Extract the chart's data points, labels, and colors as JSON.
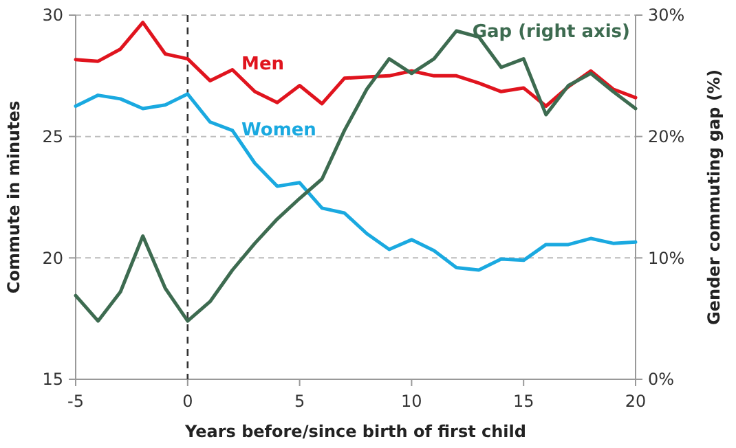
{
  "chart_data": {
    "type": "line",
    "xlabel": "Years before/since birth of first child",
    "ylabel": "Commute in minutes",
    "y2label": "Gender commuting gap (%)",
    "x": [
      -5,
      -4,
      -3,
      -2,
      -1,
      0,
      1,
      2,
      3,
      4,
      5,
      6,
      7,
      8,
      9,
      10,
      11,
      12,
      13,
      14,
      15,
      16,
      17,
      18,
      19,
      20
    ],
    "xlim": [
      -5,
      20
    ],
    "xticks": [
      -5,
      0,
      5,
      10,
      15,
      20
    ],
    "ylim": [
      15,
      30
    ],
    "yticks": [
      15,
      20,
      25,
      30
    ],
    "y2lim": [
      0,
      30
    ],
    "y2ticks": [
      {
        "value": 0,
        "label": "0%"
      },
      {
        "value": 10,
        "label": "10%"
      },
      {
        "value": 20,
        "label": "20%"
      },
      {
        "value": 30,
        "label": "30%"
      }
    ],
    "grid": "y",
    "line_style": "solid",
    "marker": "none",
    "ref_lines": [
      {
        "axis": "x",
        "value": 0,
        "label": null,
        "color": "#333333",
        "line_style": "dashed"
      }
    ],
    "series": [
      {
        "name": "Men",
        "color": "#e0141e",
        "values": [
          28.17,
          28.1,
          28.6,
          29.7,
          28.4,
          28.2,
          27.3,
          27.75,
          26.85,
          26.4,
          27.1,
          26.35,
          27.4,
          27.45,
          27.5,
          27.7,
          27.5,
          27.5,
          27.2,
          26.85,
          27.0,
          26.25,
          27.05,
          27.7,
          26.95,
          26.6
        ]
      },
      {
        "name": "Women",
        "color": "#1aa9e0",
        "values": [
          26.25,
          26.7,
          26.55,
          26.15,
          26.3,
          26.75,
          25.6,
          25.25,
          23.9,
          22.95,
          23.1,
          22.05,
          21.85,
          21.0,
          20.35,
          20.75,
          20.3,
          19.6,
          19.5,
          19.95,
          19.9,
          20.55,
          20.55,
          20.8,
          20.6,
          20.65
        ]
      },
      {
        "name": "Gap (right axis)",
        "color": "#3d6b50",
        "axis": "y2",
        "values": [
          6.9,
          4.8,
          7.2,
          11.8,
          7.5,
          4.8,
          6.4,
          9.0,
          11.2,
          13.2,
          14.9,
          16.5,
          20.5,
          23.9,
          26.4,
          25.2,
          26.4,
          28.7,
          28.2,
          25.7,
          26.4,
          21.8,
          24.2,
          25.2,
          23.7,
          22.3
        ]
      }
    ]
  }
}
